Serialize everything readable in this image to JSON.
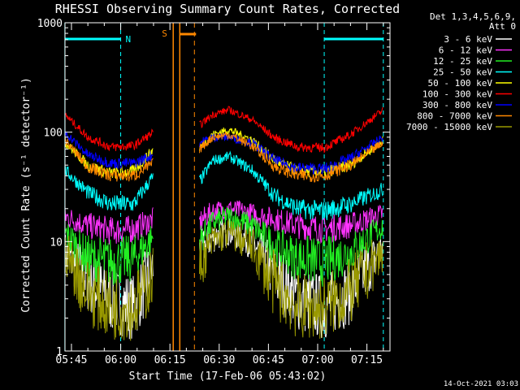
{
  "chart_data": {
    "type": "line",
    "title": "RHESSI Observing Summary Count Rates, Corrected",
    "xlabel": "Start Time (17-Feb-06 05:43:02)",
    "ylabel": "Corrected Count Rate (s⁻¹ detector⁻¹)",
    "x_start": "05:43:02",
    "x_end": "07:22:00",
    "xlim_minutes": [
      0,
      99
    ],
    "ylim": [
      1,
      1000
    ],
    "yscale": "log",
    "xtick_labels": [
      "05:45",
      "06:00",
      "06:15",
      "06:30",
      "06:45",
      "07:00",
      "07:15"
    ],
    "ytick_labels": [
      "1",
      "10",
      "100",
      "1000"
    ],
    "legend_title": [
      "Det 1,3,4,5,6,9,",
      "Att 0"
    ],
    "legend_position": "right",
    "footer": "14-Oct-2021 03:03",
    "annotations": {
      "night_label": "N",
      "saa_label": "S"
    },
    "x": [
      "05:43",
      "05:50",
      "05:57",
      "06:04",
      "06:10",
      "06:16",
      "06:24",
      "06:28",
      "06:33",
      "06:40",
      "06:47",
      "06:54",
      "07:02",
      "07:10",
      "07:20"
    ],
    "gap": [
      "06:16",
      "06:24"
    ],
    "series": [
      {
        "name": "3 - 6 keV",
        "color": "#ffffff",
        "values": [
          8,
          4.5,
          3,
          2.5,
          6,
          null,
          8,
          11,
          12.5,
          10,
          5,
          3,
          2.5,
          3.5,
          9
        ]
      },
      {
        "name": "6 - 12 keV",
        "color": "#ff33ff",
        "values": [
          17,
          14,
          12.5,
          13,
          16,
          null,
          15,
          19,
          20,
          18,
          16,
          14,
          13,
          14,
          18
        ]
      },
      {
        "name": "12 - 25 keV",
        "color": "#22ee22",
        "values": [
          12,
          7,
          6.5,
          7,
          11,
          null,
          10,
          15,
          17,
          14,
          9,
          7,
          6.5,
          8,
          14
        ]
      },
      {
        "name": "25 - 50 keV",
        "color": "#00ffff",
        "values": [
          45,
          28,
          22,
          22,
          40,
          null,
          35,
          55,
          60,
          45,
          26,
          20,
          19,
          22,
          30
        ]
      },
      {
        "name": "50 - 100 keV",
        "color": "#ffff00",
        "values": [
          80,
          50,
          42,
          44,
          70,
          null,
          72,
          95,
          105,
          85,
          55,
          44,
          43,
          50,
          85
        ]
      },
      {
        "name": "100 - 300 keV",
        "color": "#ff0000",
        "values": [
          145,
          90,
          73,
          75,
          100,
          null,
          115,
          145,
          160,
          130,
          88,
          73,
          72,
          95,
          160
        ]
      },
      {
        "name": "300 - 800 keV",
        "color": "#0000ff",
        "values": [
          100,
          62,
          52,
          52,
          62,
          null,
          80,
          90,
          90,
          80,
          55,
          47,
          46,
          58,
          90
        ]
      },
      {
        "name": "800 - 7000 keV",
        "color": "#ff8800",
        "values": [
          85,
          48,
          40,
          40,
          52,
          null,
          70,
          90,
          95,
          75,
          48,
          40,
          40,
          50,
          80
        ]
      },
      {
        "name": "7000 - 15000 keV",
        "color": "#999900",
        "values": [
          8,
          3.5,
          2.5,
          2.5,
          5,
          null,
          6,
          10,
          12,
          9,
          4,
          2.5,
          2.5,
          3.5,
          8
        ]
      }
    ],
    "night_intervals": [
      [
        "05:43",
        "06:00"
      ],
      [
        "07:02",
        "07:20"
      ]
    ],
    "saa_intervals": [
      [
        "06:16",
        "06:18"
      ]
    ]
  }
}
